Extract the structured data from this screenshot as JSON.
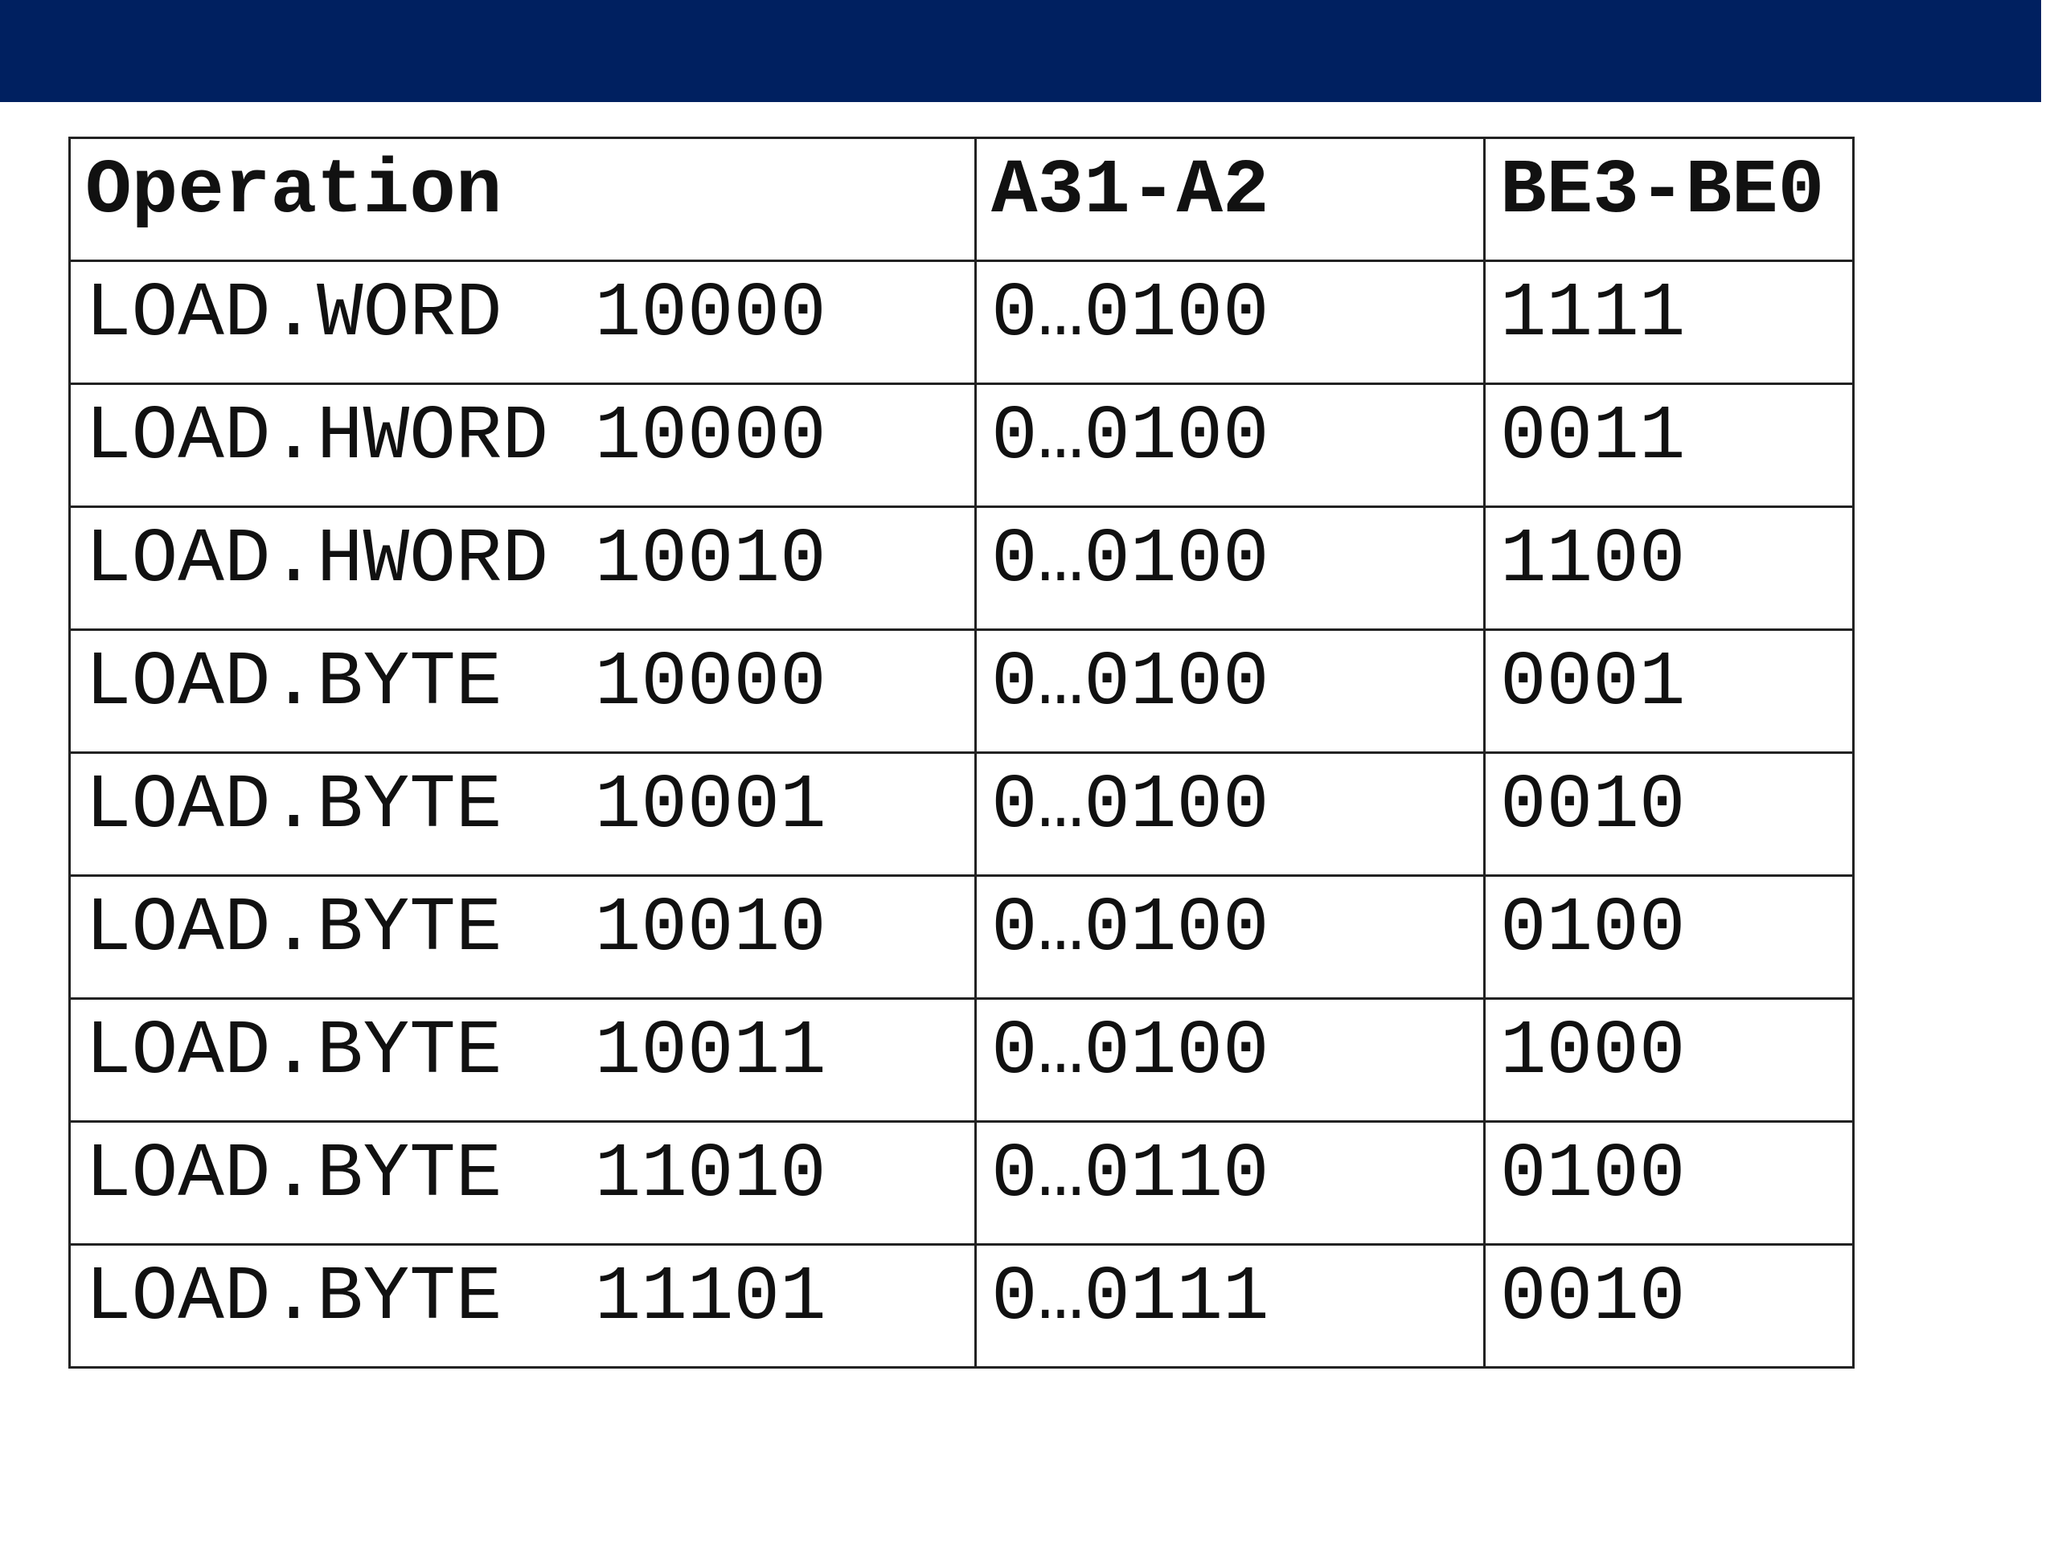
{
  "table": {
    "header": [
      "Operation",
      "A31-A2",
      "BE3-BE0"
    ],
    "rows": [
      [
        "LOAD.WORD  10000",
        "0…0100",
        "1111"
      ],
      [
        "LOAD.HWORD 10000",
        "0…0100",
        "0011"
      ],
      [
        "LOAD.HWORD 10010",
        "0…0100",
        "1100"
      ],
      [
        "LOAD.BYTE  10000",
        "0…0100",
        "0001"
      ],
      [
        "LOAD.BYTE  10001",
        "0…0100",
        "0010"
      ],
      [
        "LOAD.BYTE  10010",
        "0…0100",
        "0100"
      ],
      [
        "LOAD.BYTE  10011",
        "0…0100",
        "1000"
      ],
      [
        "LOAD.BYTE  11010",
        "0…0110",
        "0100"
      ],
      [
        "LOAD.BYTE  11101",
        "0…0111",
        "0010"
      ]
    ]
  }
}
